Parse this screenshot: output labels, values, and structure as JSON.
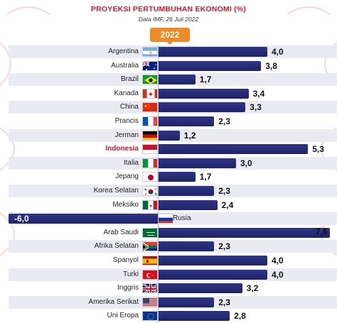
{
  "header": {
    "title": "PROYEKSI PERTUMBUHAN EKONOMI (%)",
    "subtitle": "Data IMF, 26 Juli 2022",
    "year": "2022"
  },
  "colors": {
    "bar": "#1f2466",
    "title": "#d7192d",
    "badge": "#f08a24",
    "stripe": "#e9eaf2"
  },
  "chart_data": {
    "type": "bar",
    "orientation": "horizontal",
    "title": "PROYEKSI PERTUMBUHAN EKONOMI (%)",
    "subtitle": "Data IMF, 26 Juli 2022",
    "series_label": "2022",
    "xlim": [
      -6.0,
      7.6
    ],
    "highlight": "Indonesia",
    "rows": [
      {
        "country": "Argentina",
        "value": 4.0,
        "label": "4,0",
        "flag": "argentina"
      },
      {
        "country": "Australia",
        "value": 3.8,
        "label": "3,8",
        "flag": "australia"
      },
      {
        "country": "Brazil",
        "value": 1.7,
        "label": "1,7",
        "flag": "brazil"
      },
      {
        "country": "Kanada",
        "value": 3.4,
        "label": "3,4",
        "flag": "canada"
      },
      {
        "country": "China",
        "value": 3.3,
        "label": "3,3",
        "flag": "china"
      },
      {
        "country": "Prancis",
        "value": 2.3,
        "label": "2,3",
        "flag": "france"
      },
      {
        "country": "Jerman",
        "value": 1.2,
        "label": "1,2",
        "flag": "germany"
      },
      {
        "country": "Indonesia",
        "value": 5.3,
        "label": "5,3",
        "flag": "indonesia"
      },
      {
        "country": "Italia",
        "value": 3.0,
        "label": "3,0",
        "flag": "italy"
      },
      {
        "country": "Jepang",
        "value": 1.7,
        "label": "1,7",
        "flag": "japan"
      },
      {
        "country": "Korea Selatan",
        "value": 2.3,
        "label": "2,3",
        "flag": "south-korea"
      },
      {
        "country": "Meksiko",
        "value": 2.4,
        "label": "2,4",
        "flag": "mexico"
      },
      {
        "country": "Rusia",
        "value": -6.0,
        "label": "-6,0",
        "flag": "russia"
      },
      {
        "country": "Arab Saudi",
        "value": 7.6,
        "label": "7,6",
        "flag": "saudi-arabia"
      },
      {
        "country": "Afrika Selatan",
        "value": 2.3,
        "label": "2,3",
        "flag": "south-africa"
      },
      {
        "country": "Spanyol",
        "value": 4.0,
        "label": "4,0",
        "flag": "spain"
      },
      {
        "country": "Turki",
        "value": 4.0,
        "label": "4,0",
        "flag": "turkey"
      },
      {
        "country": "Inggris",
        "value": 3.2,
        "label": "3,2",
        "flag": "uk"
      },
      {
        "country": "Amerika Serikat",
        "value": 2.3,
        "label": "2,3",
        "flag": "usa"
      },
      {
        "country": "Uni Eropa",
        "value": 2.8,
        "label": "2,8",
        "flag": "eu"
      }
    ]
  }
}
